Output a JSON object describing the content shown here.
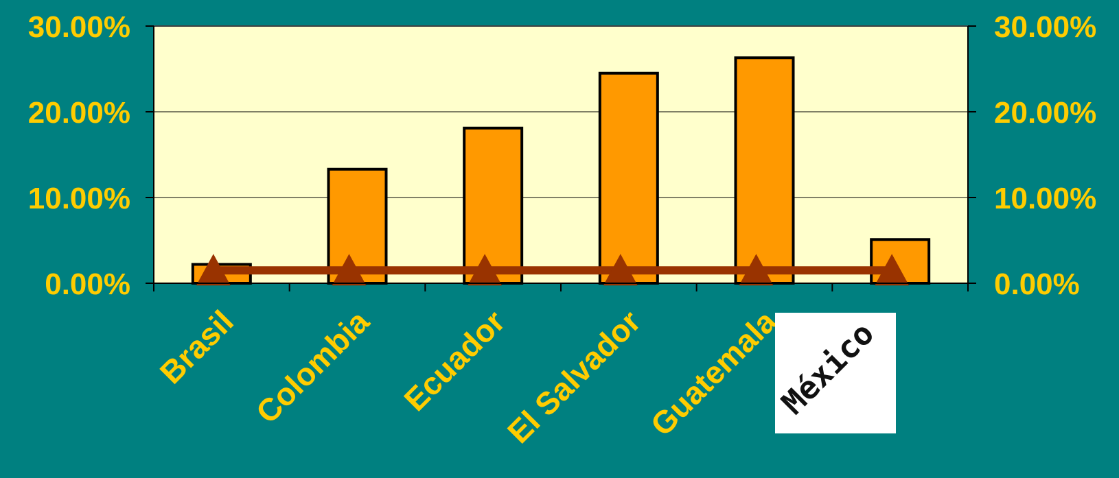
{
  "chart_data": {
    "type": "bar",
    "title": "",
    "xlabel": "",
    "ylabel": "",
    "categories": [
      "Brasil",
      "Colombia",
      "Ecuador",
      "El Salvador",
      "Guatemala",
      "México"
    ],
    "series": [
      {
        "type": "bar",
        "values": [
          0.022,
          0.133,
          0.181,
          0.245,
          0.263,
          0.051
        ],
        "color": "#ff9900",
        "edgecolor": "#000000"
      },
      {
        "type": "line",
        "values": [
          0.015,
          0.015,
          0.015,
          0.015,
          0.015,
          0.015
        ],
        "color": "#993300",
        "marker": "triangle"
      }
    ],
    "ylim": [
      0,
      0.3
    ],
    "y_ticks": [
      "0.00%",
      "10.00%",
      "20.00%",
      "30.00%"
    ],
    "y_right_ticks": [
      "0.00%",
      "10.00%",
      "20.00%",
      "30.00%"
    ],
    "grid": true,
    "plot_background": "#ffffcc",
    "page_background": "#008080",
    "label_color": "#ffcc00",
    "last_category_style": "stamp image (black text on white box)"
  }
}
